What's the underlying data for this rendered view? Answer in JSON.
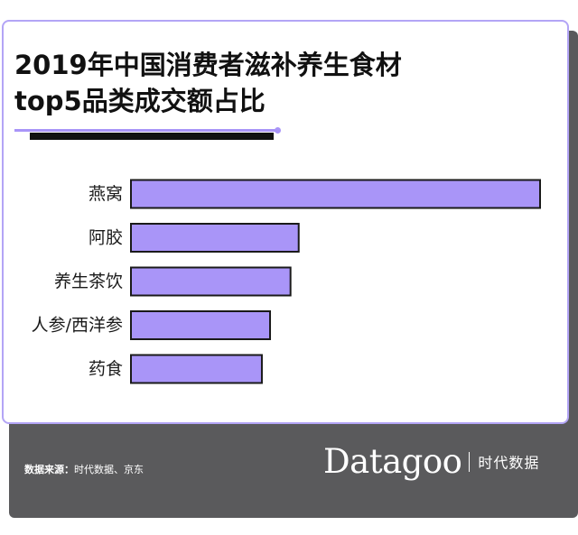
{
  "title": {
    "line1": "2019年中国消费者滋补养生食材",
    "line2": "top5品类成交额占比"
  },
  "chart_data": {
    "type": "bar",
    "orientation": "horizontal",
    "title": "2019年中国消费者滋补养生食材top5品类成交额占比",
    "categories": [
      "燕窝",
      "阿胶",
      "养生茶饮",
      "人参/西洋参",
      "药食"
    ],
    "values": [
      100,
      41,
      39,
      34,
      32
    ],
    "xlim": [
      0,
      100
    ],
    "bar_color": "#a995f8",
    "bar_border": "#1a1a1a",
    "grid": false,
    "legend": "none"
  },
  "footer": {
    "source_label": "数据来源：",
    "source_value": "时代数据、京东"
  },
  "brand": {
    "name": "Datagoo",
    "cn": "时代数据"
  },
  "colors": {
    "accent": "#a995f8",
    "panel": "#5a5a5c",
    "card_border": "#b3a5f6"
  }
}
